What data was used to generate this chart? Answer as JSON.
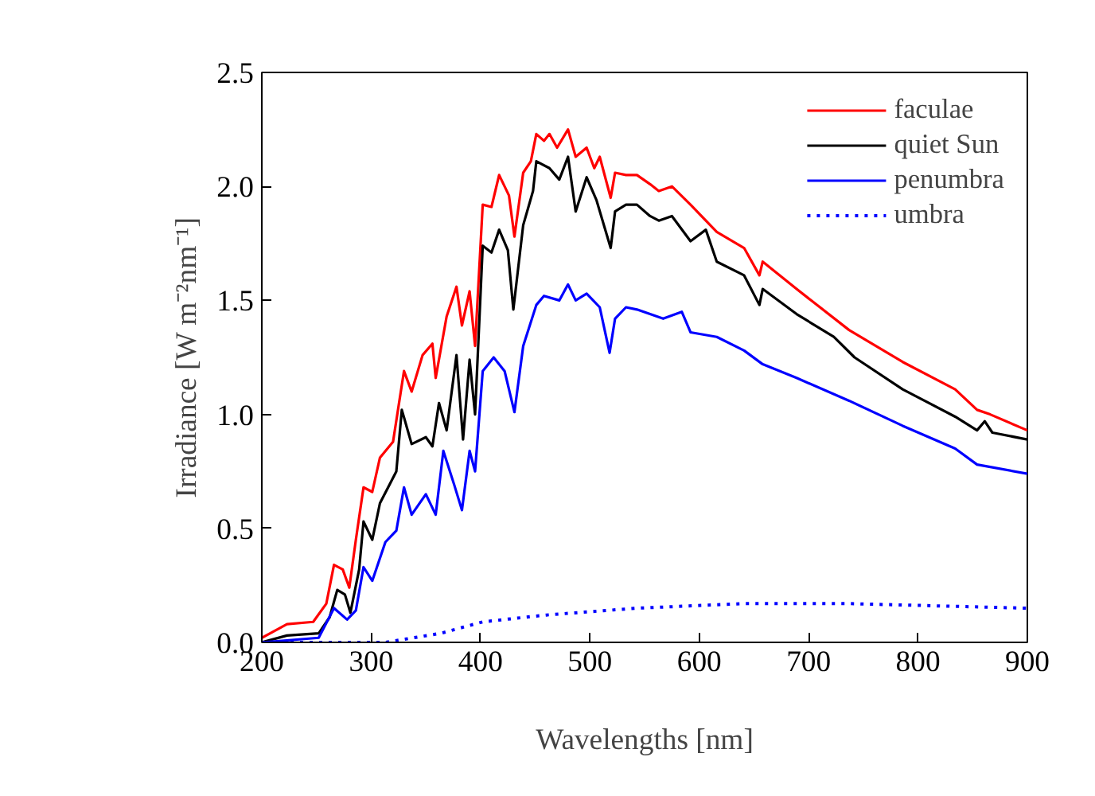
{
  "chart_data": {
    "type": "line",
    "xlabel": "Wavelengths [nm]",
    "ylabel": "Irradiance [W m⁻²nm⁻¹]",
    "xlim": [
      200,
      900
    ],
    "ylim": [
      0,
      2.5
    ],
    "xticks": [
      200,
      300,
      400,
      500,
      600,
      700,
      800,
      900
    ],
    "yticks": [
      {
        "value": 0,
        "label": "0.0"
      },
      0.5,
      {
        "value": 1,
        "label": "1.0"
      },
      1.5,
      {
        "value": 2,
        "label": "2.0"
      },
      2.5
    ],
    "grid": false,
    "legend": "top right",
    "series": [
      {
        "name": "faculae",
        "color": "#ff0000",
        "line_style": "solid",
        "x": [
          200,
          223,
          247,
          259,
          266,
          274,
          280,
          286,
          293,
          301,
          308,
          320,
          330,
          337,
          347,
          356,
          359,
          369,
          378,
          383,
          390,
          395,
          402,
          410,
          417,
          426,
          431,
          439,
          446,
          451,
          458,
          463,
          470,
          480,
          487,
          497,
          504,
          509,
          519,
          523,
          533,
          543,
          555,
          563,
          575,
          592,
          616,
          641,
          655,
          658,
          689,
          737,
          786,
          834,
          854,
          866,
          900
        ],
        "values": [
          0.02,
          0.08,
          0.09,
          0.17,
          0.34,
          0.32,
          0.24,
          0.45,
          0.68,
          0.66,
          0.81,
          0.88,
          1.19,
          1.1,
          1.26,
          1.31,
          1.16,
          1.43,
          1.56,
          1.39,
          1.54,
          1.3,
          1.92,
          1.91,
          2.05,
          1.96,
          1.78,
          2.06,
          2.11,
          2.23,
          2.2,
          2.23,
          2.17,
          2.25,
          2.13,
          2.17,
          2.08,
          2.13,
          1.95,
          2.06,
          2.05,
          2.05,
          2.01,
          1.98,
          2.0,
          1.92,
          1.8,
          1.73,
          1.61,
          1.67,
          1.55,
          1.37,
          1.23,
          1.11,
          1.02,
          1.0,
          0.93
        ]
      },
      {
        "name": "quiet Sun",
        "color": "#000000",
        "line_style": "solid",
        "x": [
          200,
          223,
          252,
          262,
          269,
          276,
          281,
          289,
          293,
          301,
          308,
          323,
          328,
          337,
          350,
          356,
          362,
          369,
          378,
          384,
          390,
          395,
          402,
          410,
          417,
          425,
          430,
          439,
          448,
          451,
          463,
          472,
          480,
          487,
          497,
          506,
          519,
          523,
          533,
          543,
          555,
          563,
          575,
          592,
          606,
          616,
          641,
          655,
          658,
          689,
          723,
          742,
          786,
          834,
          854,
          861,
          868,
          900
        ],
        "values": [
          0.0,
          0.03,
          0.04,
          0.11,
          0.23,
          0.21,
          0.13,
          0.32,
          0.53,
          0.45,
          0.61,
          0.75,
          1.02,
          0.87,
          0.9,
          0.86,
          1.05,
          0.93,
          1.26,
          0.89,
          1.24,
          1.0,
          1.74,
          1.71,
          1.81,
          1.72,
          1.46,
          1.83,
          1.98,
          2.11,
          2.08,
          2.03,
          2.13,
          1.89,
          2.04,
          1.94,
          1.73,
          1.89,
          1.92,
          1.92,
          1.87,
          1.85,
          1.87,
          1.76,
          1.81,
          1.67,
          1.61,
          1.48,
          1.55,
          1.44,
          1.34,
          1.25,
          1.11,
          0.99,
          0.93,
          0.97,
          0.92,
          0.89
        ]
      },
      {
        "name": "penumbra",
        "color": "#0000ff",
        "line_style": "solid",
        "x": [
          200,
          252,
          266,
          278,
          286,
          293,
          301,
          313,
          323,
          330,
          337,
          350,
          359,
          366,
          376,
          383,
          390,
          395,
          402,
          412,
          422,
          431,
          439,
          451,
          458,
          472,
          480,
          487,
          497,
          509,
          518,
          523,
          533,
          543,
          555,
          567,
          584,
          592,
          616,
          641,
          658,
          689,
          737,
          786,
          834,
          854,
          900
        ],
        "values": [
          0.0,
          0.02,
          0.15,
          0.1,
          0.14,
          0.33,
          0.27,
          0.44,
          0.49,
          0.68,
          0.56,
          0.65,
          0.56,
          0.84,
          0.69,
          0.58,
          0.84,
          0.75,
          1.19,
          1.25,
          1.19,
          1.01,
          1.3,
          1.48,
          1.52,
          1.5,
          1.57,
          1.5,
          1.53,
          1.47,
          1.27,
          1.42,
          1.47,
          1.46,
          1.44,
          1.42,
          1.45,
          1.36,
          1.34,
          1.28,
          1.22,
          1.16,
          1.06,
          0.95,
          0.85,
          0.78,
          0.74
        ]
      },
      {
        "name": "umbra",
        "color": "#0000ff",
        "line_style": "dotted",
        "x": [
          200,
          313,
          364,
          402,
          460,
          543,
          641,
          737,
          900
        ],
        "values": [
          0.0,
          0.0,
          0.04,
          0.09,
          0.12,
          0.15,
          0.17,
          0.17,
          0.15
        ]
      }
    ]
  }
}
